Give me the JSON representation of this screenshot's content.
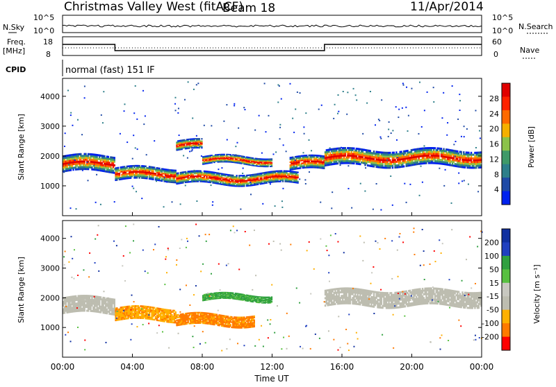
{
  "header": {
    "station": "Christmas Valley West (fitACF)",
    "beam": "Beam 18",
    "date": "11/Apr/2014"
  },
  "panels": {
    "nsky_label": "N.Sky",
    "nsky_ticks": [
      "10^5",
      "10^0"
    ],
    "nsearch_label": "N.Search",
    "nsearch_ticks": [
      "10^5",
      "10^0"
    ],
    "freq_label": "Freq.",
    "freq_unit": "[MHz]",
    "freq_ticks": [
      "18",
      "8"
    ],
    "nave_label": "Nave",
    "nave_ticks": [
      "60",
      "0"
    ],
    "cpid_label": "CPID",
    "cpid_value": "normal (fast) 151 IF"
  },
  "colors": {
    "power": [
      "#0022ee",
      "#1f4aa6",
      "#2d7f8a",
      "#3f9a68",
      "#8bc24a",
      "#f5b000",
      "#ff6a00",
      "#ff2200",
      "#e00000"
    ],
    "velocity": [
      "#ff0000",
      "#ff7a00",
      "#ffb000",
      "#bdbdb0",
      "#c8c8c0",
      "#58c040",
      "#30a040",
      "#2040c0",
      "#1030a0"
    ]
  },
  "chart_data": [
    {
      "type": "heatmap",
      "title": "",
      "ylabel": "Slant Range [km]",
      "xlabel": "",
      "ylim": [
        0,
        4600
      ],
      "xlim": [
        0,
        24
      ],
      "y_ticks": [
        "1000",
        "2000",
        "3000",
        "4000"
      ],
      "x_ticks": [
        "00:00",
        "04:00",
        "08:00",
        "12:00",
        "16:00",
        "20:00",
        "00:00"
      ],
      "colorbar": {
        "label": "Power [dB]",
        "ticks": [
          "4",
          "8",
          "12",
          "16",
          "20",
          "24",
          "28"
        ],
        "range": [
          0,
          30
        ]
      },
      "echo_bands": [
        {
          "t": [
            0,
            3
          ],
          "center_km": 1700,
          "width_km": 500
        },
        {
          "t": [
            3,
            6.5
          ],
          "center_km": 1350,
          "width_km": 400
        },
        {
          "t": [
            6.5,
            8
          ],
          "center_km": 2300,
          "width_km": 300
        },
        {
          "t": [
            6.5,
            13.5
          ],
          "center_km": 1200,
          "width_km": 350
        },
        {
          "t": [
            8,
            12
          ],
          "center_km": 1800,
          "width_km": 250
        },
        {
          "t": [
            13,
            15
          ],
          "center_km": 1700,
          "width_km": 400
        },
        {
          "t": [
            15,
            24
          ],
          "center_km": 1900,
          "width_km": 500
        }
      ]
    },
    {
      "type": "heatmap",
      "title": "",
      "ylabel": "Slant Range [km]",
      "xlabel": "Time UT",
      "ylim": [
        0,
        4600
      ],
      "xlim": [
        0,
        24
      ],
      "y_ticks": [
        "1000",
        "2000",
        "3000",
        "4000"
      ],
      "x_ticks": [
        "00:00",
        "04:00",
        "08:00",
        "12:00",
        "16:00",
        "20:00",
        "00:00"
      ],
      "colorbar": {
        "label": "Velocity [m s⁻¹]",
        "ticks": [
          "200",
          "100",
          "50",
          "15",
          "-15",
          "-50",
          "-100",
          "-200"
        ],
        "range": [
          -250,
          250
        ]
      },
      "echo_bands": [
        {
          "t": [
            0,
            3
          ],
          "center_km": 1700,
          "width_km": 500,
          "velocity": 0
        },
        {
          "t": [
            3,
            6.5
          ],
          "center_km": 1400,
          "width_km": 400,
          "velocity": -60
        },
        {
          "t": [
            6.5,
            11
          ],
          "center_km": 1200,
          "width_km": 350,
          "velocity": -80
        },
        {
          "t": [
            8,
            12
          ],
          "center_km": 1950,
          "width_km": 200,
          "velocity": 70
        },
        {
          "t": [
            15,
            24
          ],
          "center_km": 1950,
          "width_km": 500,
          "velocity": 0
        }
      ]
    }
  ]
}
